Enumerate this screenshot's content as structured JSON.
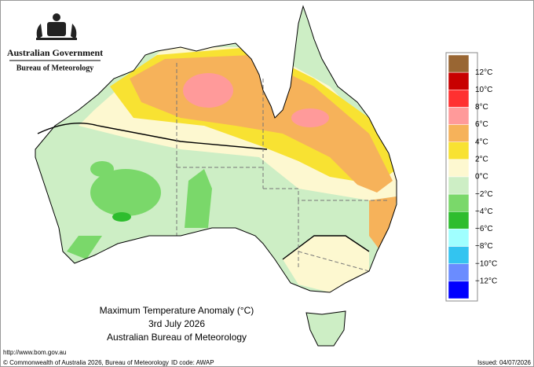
{
  "header": {
    "government": "Australian Government",
    "bureau": "Bureau of Meteorology"
  },
  "map": {
    "title": "Maximum Temperature Anomaly (°C)",
    "date": "3rd July 2026",
    "source": "Australian Bureau of Meteorology"
  },
  "legend": {
    "colors": [
      "#996633",
      "#c80000",
      "#ff3030",
      "#ff9a9a",
      "#f6b25a",
      "#f8e232",
      "#fdf8d0",
      "#cdeec5",
      "#7ad86a",
      "#2ebd2e",
      "#a0ffff",
      "#33c4f0",
      "#6a8cff",
      "#0000ff"
    ],
    "labels": [
      "12°C",
      "10°C",
      "8°C",
      "6°C",
      "4°C",
      "2°C",
      "0°C",
      "−2°C",
      "−4°C",
      "−6°C",
      "−8°C",
      "−10°C",
      "−12°C"
    ]
  },
  "footer": {
    "url": "http://www.bom.gov.au",
    "copyright": "© Commonwealth of Australia 2026, Bureau of Meteorology",
    "id": "ID code: AWAP",
    "issued": "Issued: 04/07/2026"
  }
}
